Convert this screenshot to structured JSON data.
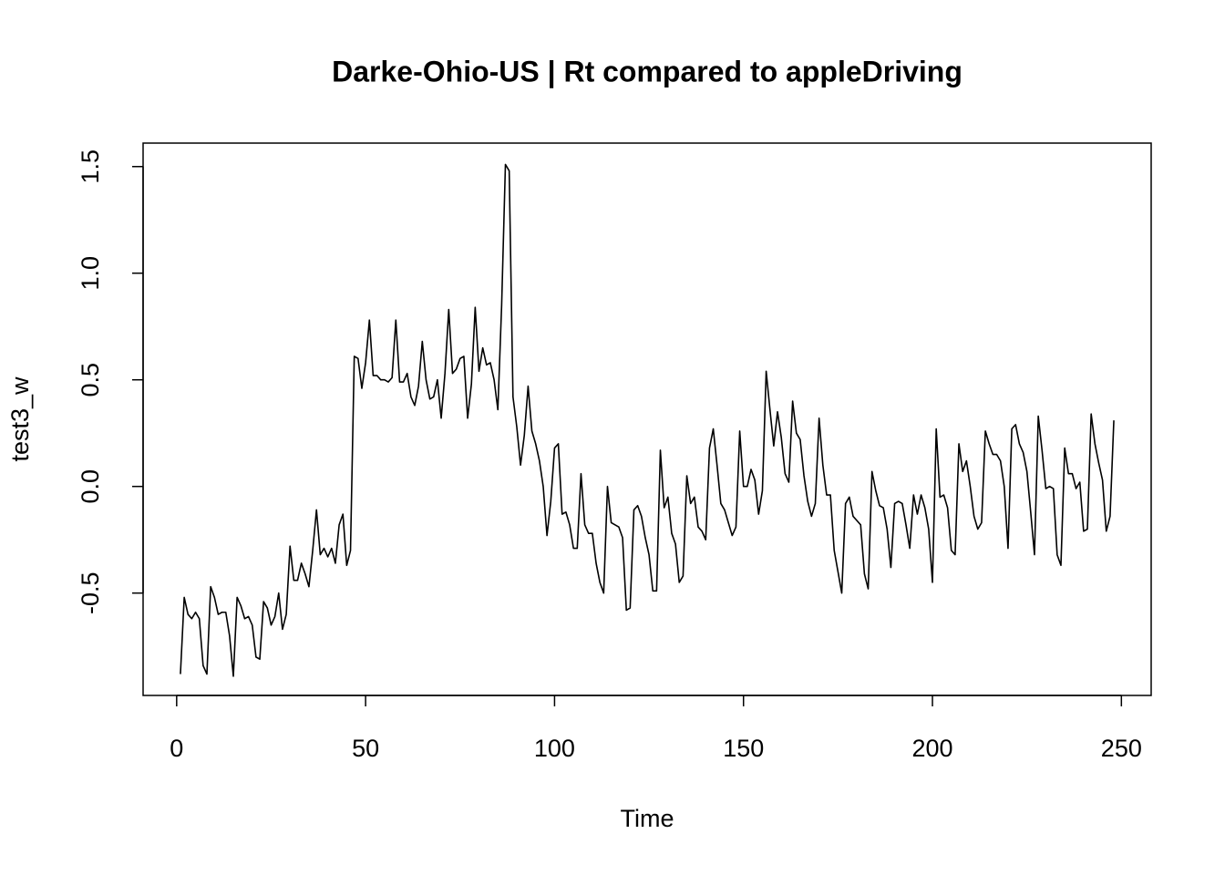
{
  "chart_data": {
    "type": "line",
    "title": "Darke-Ohio-US | Rt compared to appleDriving",
    "xlabel": "Time",
    "ylabel": "test3_w",
    "color": "#000000",
    "x": [
      1,
      2,
      3,
      4,
      5,
      6,
      7,
      8,
      9,
      10,
      11,
      12,
      13,
      14,
      15,
      16,
      17,
      18,
      19,
      20,
      21,
      22,
      23,
      24,
      25,
      26,
      27,
      28,
      29,
      30,
      31,
      32,
      33,
      34,
      35,
      36,
      37,
      38,
      39,
      40,
      41,
      42,
      43,
      44,
      45,
      46,
      47,
      48,
      49,
      50,
      51,
      52,
      53,
      54,
      55,
      56,
      57,
      58,
      59,
      60,
      61,
      62,
      63,
      64,
      65,
      66,
      67,
      68,
      69,
      70,
      71,
      72,
      73,
      74,
      75,
      76,
      77,
      78,
      79,
      80,
      81,
      82,
      83,
      84,
      85,
      86,
      87,
      88,
      89,
      90,
      91,
      92,
      93,
      94,
      95,
      96,
      97,
      98,
      99,
      100,
      101,
      102,
      103,
      104,
      105,
      106,
      107,
      108,
      109,
      110,
      111,
      112,
      113,
      114,
      115,
      116,
      117,
      118,
      119,
      120,
      121,
      122,
      123,
      124,
      125,
      126,
      127,
      128,
      129,
      130,
      131,
      132,
      133,
      134,
      135,
      136,
      137,
      138,
      139,
      140,
      141,
      142,
      143,
      144,
      145,
      146,
      147,
      148,
      149,
      150,
      151,
      152,
      153,
      154,
      155,
      156,
      157,
      158,
      159,
      160,
      161,
      162,
      163,
      164,
      165,
      166,
      167,
      168,
      169,
      170,
      171,
      172,
      173,
      174,
      175,
      176,
      177,
      178,
      179,
      180,
      181,
      182,
      183,
      184,
      185,
      186,
      187,
      188,
      189,
      190,
      191,
      192,
      193,
      194,
      195,
      196,
      197,
      198,
      199,
      200,
      201,
      202,
      203,
      204,
      205,
      206,
      207,
      208,
      209,
      210,
      211,
      212,
      213,
      214,
      215,
      216,
      217,
      218,
      219,
      220,
      221,
      222,
      223,
      224,
      225,
      226,
      227,
      228,
      229,
      230,
      231,
      232,
      233,
      234,
      235,
      236,
      237,
      238,
      239,
      240,
      241,
      242,
      243,
      244,
      245,
      246,
      247,
      248
    ],
    "values": [
      -0.88,
      -0.52,
      -0.6,
      -0.62,
      -0.59,
      -0.62,
      -0.84,
      -0.88,
      -0.47,
      -0.52,
      -0.6,
      -0.59,
      -0.59,
      -0.7,
      -0.89,
      -0.52,
      -0.56,
      -0.62,
      -0.61,
      -0.65,
      -0.8,
      -0.81,
      -0.54,
      -0.57,
      -0.65,
      -0.61,
      -0.5,
      -0.67,
      -0.6,
      -0.28,
      -0.44,
      -0.44,
      -0.36,
      -0.41,
      -0.47,
      -0.3,
      -0.11,
      -0.32,
      -0.29,
      -0.33,
      -0.29,
      -0.36,
      -0.18,
      -0.13,
      -0.37,
      -0.3,
      0.61,
      0.6,
      0.46,
      0.58,
      0.78,
      0.52,
      0.52,
      0.5,
      0.5,
      0.49,
      0.51,
      0.78,
      0.49,
      0.49,
      0.53,
      0.42,
      0.38,
      0.47,
      0.68,
      0.5,
      0.41,
      0.42,
      0.5,
      0.32,
      0.53,
      0.83,
      0.53,
      0.55,
      0.6,
      0.61,
      0.32,
      0.48,
      0.84,
      0.54,
      0.65,
      0.57,
      0.58,
      0.5,
      0.36,
      0.85,
      1.51,
      1.48,
      0.42,
      0.28,
      0.1,
      0.24,
      0.47,
      0.26,
      0.2,
      0.12,
      0.0,
      -0.23,
      -0.07,
      0.18,
      0.2,
      -0.13,
      -0.12,
      -0.18,
      -0.29,
      -0.29,
      0.06,
      -0.18,
      -0.22,
      -0.22,
      -0.36,
      -0.45,
      -0.5,
      0.0,
      -0.17,
      -0.18,
      -0.19,
      -0.24,
      -0.58,
      -0.57,
      -0.11,
      -0.09,
      -0.14,
      -0.24,
      -0.32,
      -0.49,
      -0.49,
      0.17,
      -0.1,
      -0.05,
      -0.22,
      -0.27,
      -0.45,
      -0.42,
      0.05,
      -0.08,
      -0.05,
      -0.19,
      -0.21,
      -0.25,
      0.18,
      0.27,
      0.1,
      -0.08,
      -0.11,
      -0.17,
      -0.23,
      -0.19,
      0.26,
      0.0,
      0.0,
      0.08,
      0.03,
      -0.13,
      -0.02,
      0.54,
      0.36,
      0.19,
      0.35,
      0.23,
      0.06,
      0.02,
      0.4,
      0.25,
      0.22,
      0.05,
      -0.07,
      -0.14,
      -0.08,
      0.32,
      0.1,
      -0.04,
      -0.04,
      -0.3,
      -0.4,
      -0.5,
      -0.08,
      -0.05,
      -0.14,
      -0.16,
      -0.18,
      -0.41,
      -0.48,
      0.07,
      -0.02,
      -0.09,
      -0.1,
      -0.2,
      -0.38,
      -0.08,
      -0.07,
      -0.08,
      -0.18,
      -0.29,
      -0.04,
      -0.13,
      -0.04,
      -0.1,
      -0.2,
      -0.45,
      0.27,
      -0.05,
      -0.04,
      -0.1,
      -0.3,
      -0.32,
      0.2,
      0.07,
      0.12,
      0.0,
      -0.14,
      -0.2,
      -0.17,
      0.26,
      0.2,
      0.15,
      0.15,
      0.12,
      0.0,
      -0.29,
      0.27,
      0.29,
      0.2,
      0.16,
      0.07,
      -0.12,
      -0.32,
      0.33,
      0.17,
      -0.01,
      0.0,
      -0.01,
      -0.32,
      -0.37,
      0.18,
      0.06,
      0.06,
      -0.01,
      0.02,
      -0.21,
      -0.2,
      0.34,
      0.2,
      0.11,
      0.03,
      -0.21,
      -0.14,
      0.31
    ],
    "xlim": [
      -8.88,
      257.88
    ],
    "ylim": [
      -0.98,
      1.61
    ],
    "xticks": [
      0,
      50,
      100,
      150,
      200,
      250
    ],
    "yticks": [
      -0.5,
      {
        "value": 0,
        "label": "0.0"
      },
      0.5,
      {
        "value": 1,
        "label": "1.0"
      },
      1.5
    ]
  }
}
